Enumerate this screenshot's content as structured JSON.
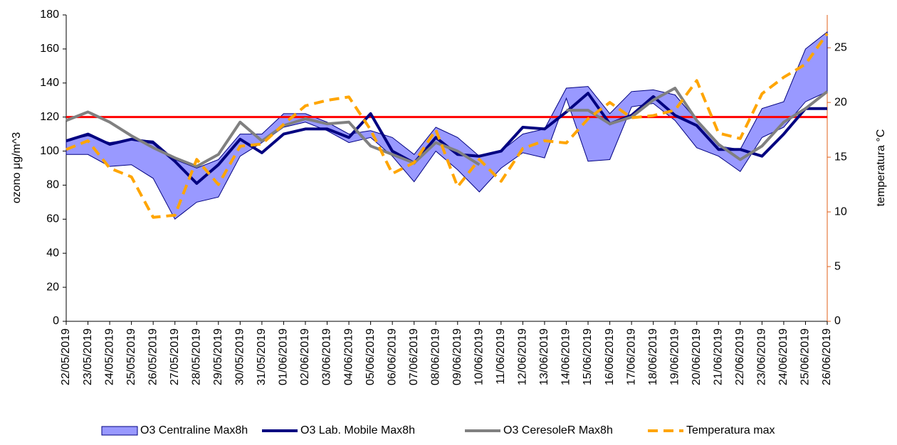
{
  "chart_data": {
    "type": "line",
    "y_label": "ozono μg/m^3",
    "y2_label": "temperatura °C",
    "categories": [
      "22/05/2019",
      "23/05/2019",
      "24/05/2019",
      "25/05/2019",
      "26/05/2019",
      "27/05/2019",
      "28/05/2019",
      "29/05/2019",
      "30/05/2019",
      "31/05/2019",
      "01/06/2019",
      "02/06/2019",
      "03/06/2019",
      "04/06/2019",
      "05/06/2019",
      "06/06/2019",
      "07/06/2019",
      "08/06/2019",
      "09/06/2019",
      "10/06/2019",
      "11/06/2019",
      "12/06/2019",
      "13/06/2019",
      "14/06/2019",
      "15/06/2019",
      "16/06/2019",
      "17/06/2019",
      "18/06/2019",
      "19/06/2019",
      "20/06/2019",
      "21/06/2019",
      "22/06/2019",
      "23/06/2019",
      "24/06/2019",
      "25/06/2019",
      "26/06/2019"
    ],
    "ylim": [
      0,
      180
    ],
    "yticks": [
      0,
      20,
      40,
      60,
      80,
      100,
      120,
      140,
      160,
      180
    ],
    "y2lim": [
      0,
      28
    ],
    "y2ticks": [
      0,
      5,
      10,
      15,
      20,
      25
    ],
    "threshold": 120,
    "threshold_color": "#ff0000",
    "series": [
      {
        "name": "O3 Centraline Max8h",
        "kind": "band",
        "color": "#9999ff",
        "stroke": "#000080",
        "high": [
          106,
          109,
          105,
          107,
          106,
          95,
          90,
          95,
          110,
          110,
          122,
          122,
          117,
          110,
          112,
          108,
          98,
          114,
          108,
          97,
          100,
          110,
          113,
          137,
          138,
          122,
          135,
          136,
          133,
          118,
          103,
          101,
          125,
          129,
          160,
          170
        ],
        "low": [
          98,
          98,
          91,
          92,
          84,
          60,
          70,
          73,
          97,
          105,
          114,
          117,
          112,
          105,
          108,
          97,
          82,
          100,
          89,
          76,
          90,
          99,
          96,
          131,
          94,
          95,
          126,
          128,
          118,
          102,
          97,
          88,
          108,
          114,
          129,
          135
        ]
      },
      {
        "name": "O3 Lab. Mobile Max8h",
        "color": "#000080",
        "values": [
          106,
          110,
          104,
          107,
          105,
          94,
          81,
          92,
          107,
          99,
          110,
          113,
          113,
          108,
          122,
          100,
          93,
          108,
          98,
          97,
          100,
          114,
          113,
          123,
          134,
          116,
          121,
          132,
          121,
          115,
          101,
          101,
          97,
          110,
          125,
          125
        ]
      },
      {
        "name": "O3 CeresoleR Max8h",
        "color": "#808080",
        "values": [
          118,
          123,
          117,
          109,
          102,
          96,
          91,
          98,
          117,
          106,
          115,
          119,
          116,
          117,
          103,
          98,
          93,
          105,
          100,
          92,
          null,
          null,
          null,
          124,
          124,
          116,
          120,
          130,
          137,
          118,
          104,
          95,
          103,
          117,
          125,
          135
        ]
      },
      {
        "name": "Temperatura max",
        "color": "#ffa500",
        "dashed": true,
        "axis": "y2",
        "values": [
          15.7,
          16.5,
          14,
          13.2,
          9.5,
          9.7,
          14.8,
          12.5,
          16,
          16.2,
          18,
          19.7,
          20.2,
          20.5,
          17.5,
          13.5,
          14.5,
          17.5,
          12.3,
          14.8,
          12.8,
          15.8,
          16.5,
          16.3,
          18.5,
          20,
          18.6,
          18.8,
          19.3,
          22,
          17.2,
          16.7,
          20.8,
          22.3,
          23.5,
          26.3
        ]
      }
    ]
  }
}
